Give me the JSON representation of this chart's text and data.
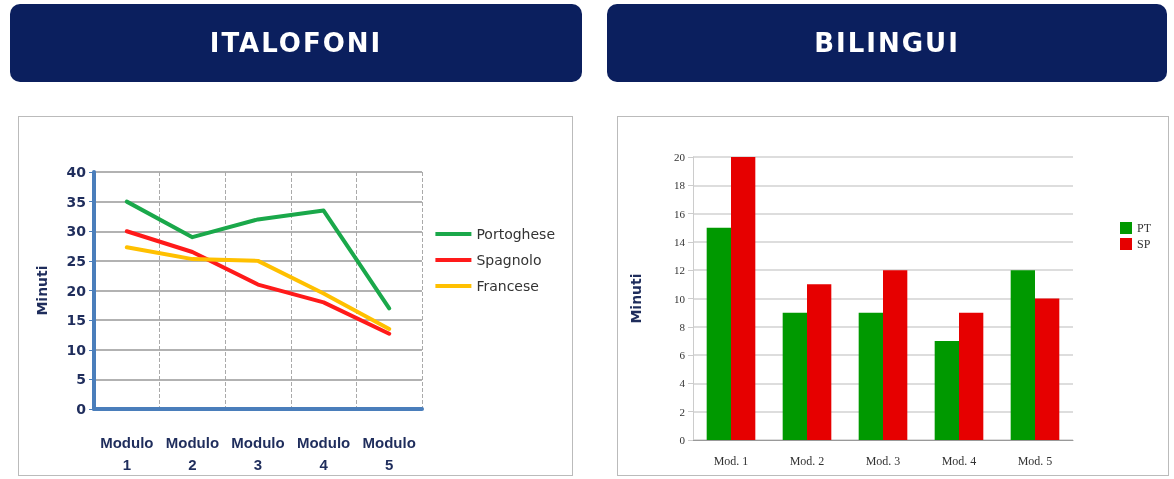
{
  "chart_data": [
    {
      "type": "line",
      "title": "ITALOFONI",
      "ylabel": "Minuti",
      "categories": [
        "Modulo 1",
        "Modulo 2",
        "Modulo 3",
        "Modulo 4",
        "Modulo 5"
      ],
      "series": [
        {
          "name": "Portoghese",
          "color": "#1aa84a",
          "values": [
            35,
            29,
            32,
            33.5,
            17
          ]
        },
        {
          "name": "Spagnolo",
          "color": "#ff1a1a",
          "values": [
            30,
            26.5,
            21,
            18,
            12.7
          ]
        },
        {
          "name": "Francese",
          "color": "#ffc000",
          "values": [
            27.3,
            25.3,
            25,
            19.5,
            13.5
          ]
        }
      ],
      "ylim": [
        0,
        40
      ],
      "yticks": [
        0,
        5,
        10,
        15,
        20,
        25,
        30,
        35,
        40
      ],
      "grid": true,
      "legend": "right",
      "marker": "none",
      "line_style": "solid"
    },
    {
      "type": "bar",
      "title": "BILINGUI",
      "ylabel": "Minuti",
      "categories": [
        "Mod. 1",
        "Mod. 2",
        "Mod. 3",
        "Mod. 4",
        "Mod. 5"
      ],
      "series": [
        {
          "name": "PT",
          "color": "#009900",
          "values": [
            15,
            9,
            9,
            7,
            12
          ]
        },
        {
          "name": "SP",
          "color": "#e60000",
          "values": [
            20,
            11,
            12,
            9,
            10
          ]
        }
      ],
      "ylim": [
        0,
        20
      ],
      "yticks": [
        0,
        2,
        4,
        6,
        8,
        10,
        12,
        14,
        16,
        18,
        20
      ],
      "grid": "y",
      "legend": "right"
    }
  ]
}
